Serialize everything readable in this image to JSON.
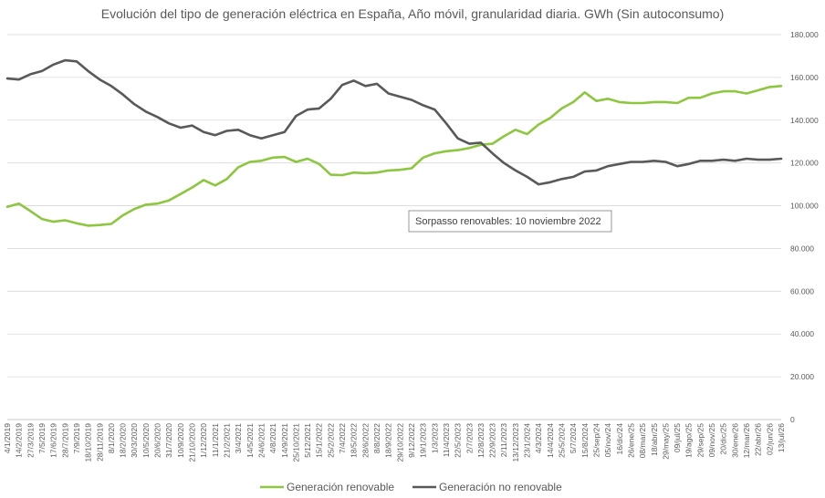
{
  "chart_data": {
    "type": "line",
    "title": "Evolución del tipo de generación eléctrica en España, Año móvil, granularidad diaria. GWh (Sin autoconsumo)",
    "xlabel": "",
    "ylabel": "",
    "ylim": [
      0,
      180000
    ],
    "y_ticks": [
      "0",
      "20.000",
      "40.000",
      "60.000",
      "80.000",
      "100.000",
      "120.000",
      "140.000",
      "160.000",
      "180.000"
    ],
    "y_tick_values": [
      0,
      20000,
      40000,
      60000,
      80000,
      100000,
      120000,
      140000,
      160000,
      180000
    ],
    "y_axis_side": "right",
    "grid": true,
    "legend_position": "bottom",
    "x_tick_labels": [
      "4/1/2019",
      "14/2/2019",
      "27/3/2019",
      "7/5/2019",
      "17/6/2019",
      "28/7/2019",
      "7/9/2019",
      "18/10/2019",
      "28/11/2019",
      "8/1/2020",
      "18/2/2020",
      "30/3/2020",
      "10/5/2020",
      "20/6/2020",
      "31/7/2020",
      "10/9/2020",
      "21/10/2020",
      "1/12/2020",
      "11/1/2021",
      "21/2/2021",
      "3/4/2021",
      "14/5/2021",
      "24/6/2021",
      "4/8/2021",
      "14/9/2021",
      "25/10/2021",
      "5/12/2021",
      "15/1/2022",
      "25/2/2022",
      "7/4/2022",
      "18/5/2022",
      "28/6/2022",
      "8/8/2022",
      "18/9/2022",
      "29/10/2022",
      "9/12/2022",
      "19/1/2023",
      "1/3/2023",
      "11/4/2023",
      "22/5/2023",
      "2/7/2023",
      "12/8/2023",
      "22/9/2023",
      "2/11/2023",
      "13/12/2023",
      "23/1/2024",
      "4/3/2024",
      "14/4/2024",
      "25/5/2024",
      "5/7/2024",
      "15/8/2024",
      "25/sep/24",
      "05/nov/24",
      "16/dic/24",
      "26/ene/25",
      "08/mar/25",
      "18/abr/25",
      "29/may/25",
      "09/jul/25",
      "19/ago/25",
      "29/sep/25",
      "09/nov/25",
      "20/dic/25",
      "30/ene/26",
      "12/mar/26",
      "22/abr/26",
      "02/jun/26",
      "13/jul/26"
    ],
    "annotation": "Sorpasso renovables: 10 noviembre 2022",
    "series": [
      {
        "name": "Generación renovable",
        "color": "#8dc63f",
        "values": [
          99500,
          101000,
          97500,
          93800,
          92500,
          93200,
          91800,
          90700,
          91000,
          91500,
          95500,
          98500,
          100500,
          101000,
          102500,
          105500,
          108500,
          112000,
          109500,
          112500,
          118000,
          120500,
          121000,
          122500,
          122800,
          120500,
          122000,
          119500,
          114500,
          114300,
          115500,
          115200,
          115500,
          116500,
          116800,
          117500,
          122500,
          124500,
          125500,
          126000,
          127000,
          128500,
          129000,
          132500,
          135500,
          133500,
          138000,
          141000,
          145500,
          148500,
          153000,
          149000,
          150000,
          148500,
          148000,
          148000,
          148500,
          148500,
          148000,
          150500,
          150500,
          152500,
          153500,
          153500,
          152500,
          154000,
          155500,
          156000
        ]
      },
      {
        "name": "Generación no renovable",
        "color": "#595959",
        "values": [
          159500,
          159000,
          161500,
          163000,
          166000,
          168000,
          167500,
          163000,
          159000,
          156000,
          152000,
          147500,
          144000,
          141500,
          138500,
          136500,
          137500,
          134500,
          133000,
          135000,
          135500,
          133000,
          131500,
          133000,
          134500,
          142000,
          145000,
          145500,
          150000,
          156500,
          158500,
          156000,
          157000,
          152500,
          151000,
          149500,
          147000,
          145000,
          138500,
          131500,
          129000,
          129500,
          124500,
          120000,
          116500,
          113500,
          110000,
          111000,
          112500,
          113500,
          116000,
          116500,
          118500,
          119500,
          120500,
          120500,
          121000,
          120500,
          118500,
          119500,
          121000,
          121000,
          121500,
          121000,
          122000,
          121500,
          121500,
          122000
        ]
      }
    ]
  }
}
